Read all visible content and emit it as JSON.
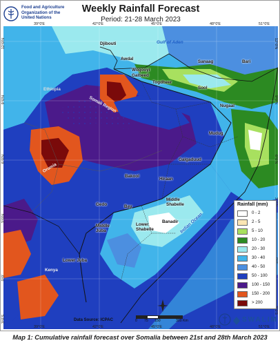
{
  "header": {
    "title": "Weekly Rainfall Forecast",
    "period": "Period: 21-28 March 2023"
  },
  "fao": {
    "line1": "Food and Agriculture",
    "line2": "Organization of the",
    "line3": "United Nations"
  },
  "grid_labels": {
    "top": [
      "39°0'E",
      "42°0'E",
      "45°0'E",
      "48°0'E",
      "51°0'E"
    ],
    "bottom": [
      "39°0'E",
      "42°0'E",
      "45°0'E",
      "48°0'E",
      "51°0'E"
    ],
    "left": [
      "12°0'N",
      "9°0'N",
      "6°0'N",
      "3°0'N",
      "0°0'",
      "3°0'S"
    ],
    "right": [
      "12°0'N",
      "9°0'N",
      "6°0'N",
      "3°0'N",
      "0°0'",
      "3°0'S"
    ]
  },
  "places": {
    "djibouti": "Djibouti",
    "awdal": "Awdal",
    "woqooyi": "Woqooyi",
    "galbeed": "Galbeed",
    "sanaag": "Sanaag",
    "bari": "Bari",
    "togdheer": "Togdheer",
    "sool": "Sool",
    "ethiopia": "Ethiopia",
    "somali_region": "Somali Region",
    "oromia": "Oromia",
    "nugaal": "Nugaal",
    "mudug": "Mudug",
    "galgaduud": "Galgaduud",
    "bakool": "Bakool",
    "hiraan": "Hiraan",
    "gedo": "Gedo",
    "bay": "Bay",
    "middle_shabelle": "Middle\nShabelle",
    "middle_juba": "Middle\nJuba",
    "lower_shabelle": "Lower\nShabelle",
    "banadir": "Banadir",
    "lower_juba": "Lower Juba",
    "kenya": "Kenya"
  },
  "seas": {
    "gulf": "Gulf of Aden",
    "ocean": "Indian Ocean"
  },
  "legend": {
    "title": "Rainfall (mm)",
    "items": [
      {
        "label": "0 - 2",
        "color": "#ffffff"
      },
      {
        "label": "2 - 5",
        "color": "#fbe6b4"
      },
      {
        "label": "5 - 10",
        "color": "#a8e05f"
      },
      {
        "label": "10 - 20",
        "color": "#2c8a22"
      },
      {
        "label": "20 - 30",
        "color": "#9be9ee"
      },
      {
        "label": "30 - 40",
        "color": "#41b4ea"
      },
      {
        "label": "40 - 50",
        "color": "#4c8fe0"
      },
      {
        "label": "50 - 100",
        "color": "#1f3fbf"
      },
      {
        "label": "100 - 150",
        "color": "#4b1a8a"
      },
      {
        "label": "150 - 200",
        "color": "#e2561e"
      },
      {
        "label": ">   200",
        "color": "#7a0a0a"
      }
    ]
  },
  "source": "Data Source: ICPAC",
  "scale": {
    "labels": [
      "0",
      "75",
      "150",
      "300 Km"
    ]
  },
  "swalim": "SWALIM",
  "caption": "Map 1: Cumulative rainfall forecast over Somalia between 21st and 28th March 2023"
}
